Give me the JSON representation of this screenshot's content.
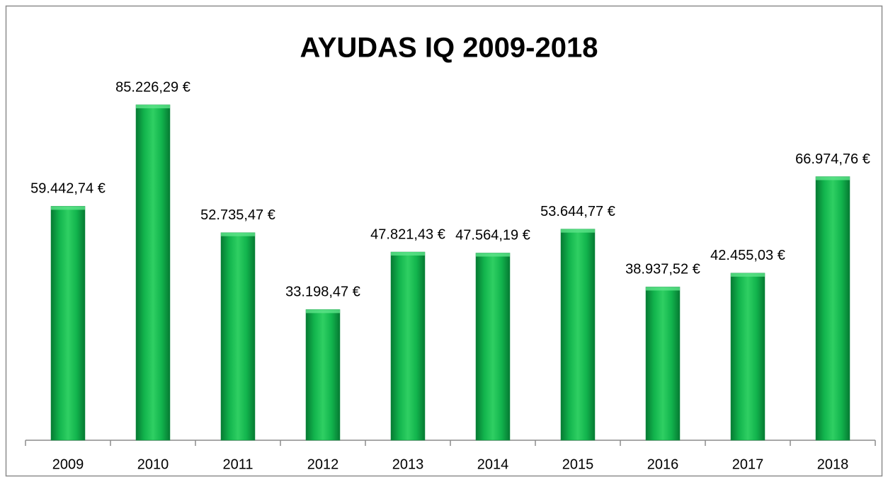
{
  "chart_data": {
    "type": "bar",
    "title": "AYUDAS IQ 2009-2018",
    "categories": [
      "2009",
      "2010",
      "2011",
      "2012",
      "2013",
      "2014",
      "2015",
      "2016",
      "2017",
      "2018"
    ],
    "values": [
      59442.74,
      85226.29,
      52735.47,
      33198.47,
      47821.43,
      47564.19,
      53644.77,
      38937.52,
      42455.03,
      66974.76
    ],
    "value_labels": [
      "59.442,74 €",
      "85.226,29 €",
      "52.735,47 €",
      "33.198,47 €",
      "47.821,43 €",
      "47.564,19 €",
      "53.644,77 €",
      "38.937,52 €",
      "42.455,03 €",
      "66.974,76 €"
    ],
    "color": "#00b050"
  }
}
